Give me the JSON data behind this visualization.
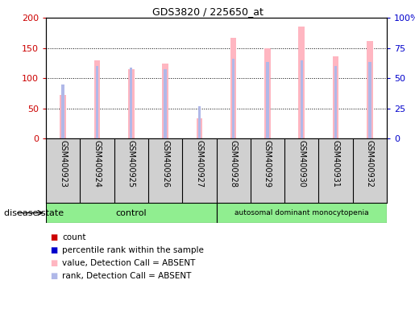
{
  "title": "GDS3820 / 225650_at",
  "samples": [
    "GSM400923",
    "GSM400924",
    "GSM400925",
    "GSM400926",
    "GSM400927",
    "GSM400928",
    "GSM400929",
    "GSM400930",
    "GSM400931",
    "GSM400932"
  ],
  "value_absent": [
    72,
    129,
    115,
    124,
    33,
    167,
    149,
    186,
    136,
    161
  ],
  "rank_absent": [
    45,
    60,
    59,
    57.5,
    26.5,
    66,
    63.5,
    65,
    60,
    63.5
  ],
  "ylim_left": [
    0,
    200
  ],
  "ylim_right": [
    0,
    100
  ],
  "yticks_left": [
    0,
    50,
    100,
    150,
    200
  ],
  "ytick_labels_left": [
    "0",
    "50",
    "100",
    "150",
    "200"
  ],
  "yticks_right": [
    0,
    25,
    50,
    75,
    100
  ],
  "ytick_labels_right": [
    "0",
    "25",
    "50",
    "75",
    "100%"
  ],
  "n_control": 5,
  "n_disease": 5,
  "control_label": "control",
  "disease_label": "autosomal dominant monocytopenia",
  "disease_state_label": "disease state",
  "bar_color_absent": "#FFB6C1",
  "rank_color_absent": "#B0B8E8",
  "left_axis_color": "#CC0000",
  "right_axis_color": "#0000CC",
  "control_bg": "#90EE90",
  "disease_bg": "#90EE90",
  "plot_bg": "#FFFFFF",
  "xlabel_bg": "#D0D0D0",
  "legend_colors": [
    "#CC0000",
    "#0000CC",
    "#FFB6C1",
    "#B0B8E8"
  ],
  "legend_labels": [
    "count",
    "percentile rank within the sample",
    "value, Detection Call = ABSENT",
    "rank, Detection Call = ABSENT"
  ],
  "bar_width": 0.18,
  "rank_bar_width": 0.08
}
